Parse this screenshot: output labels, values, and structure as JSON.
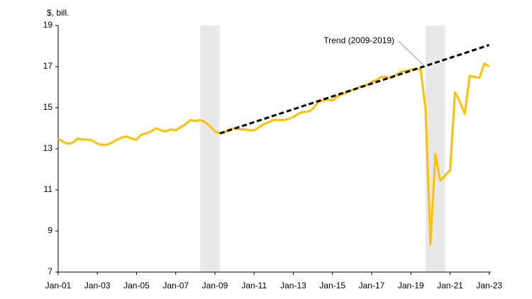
{
  "chart_data": {
    "type": "line",
    "y_label": "$, bill.",
    "annotation": "Trend (2009-2019)",
    "xlim": [
      "2001-01",
      "2023-02"
    ],
    "xticks": [
      {
        "value": "2001-01",
        "label": "Jan-01"
      },
      {
        "value": "2003-01",
        "label": "Jan-03"
      },
      {
        "value": "2005-01",
        "label": "Jan-05"
      },
      {
        "value": "2007-01",
        "label": "Jan-07"
      },
      {
        "value": "2009-01",
        "label": "Jan-09"
      },
      {
        "value": "2011-01",
        "label": "Jan-11"
      },
      {
        "value": "2013-01",
        "label": "Jan-13"
      },
      {
        "value": "2015-01",
        "label": "Jan-15"
      },
      {
        "value": "2017-01",
        "label": "Jan-17"
      },
      {
        "value": "2019-01",
        "label": "Jan-19"
      },
      {
        "value": "2021-01",
        "label": "Jan-21"
      },
      {
        "value": "2023-01",
        "label": "Jan-23"
      }
    ],
    "ylim": [
      7,
      19
    ],
    "yticks": [
      7,
      9,
      11,
      13,
      15,
      17,
      19
    ],
    "grid": false,
    "shaded_periods": [
      [
        "2008-04",
        "2009-04"
      ],
      [
        "2019-10",
        "2020-10"
      ]
    ],
    "shade_color": "#e8e8e8",
    "series": [
      {
        "color": "#ffc000",
        "dashed": false,
        "x": [
          "2001-01",
          "2001-04",
          "2001-07",
          "2001-10",
          "2002-01",
          "2002-04",
          "2002-07",
          "2002-10",
          "2003-01",
          "2003-04",
          "2003-07",
          "2003-10",
          "2004-01",
          "2004-04",
          "2004-07",
          "2004-10",
          "2005-01",
          "2005-04",
          "2005-07",
          "2005-10",
          "2006-01",
          "2006-04",
          "2006-07",
          "2006-10",
          "2007-01",
          "2007-04",
          "2007-07",
          "2007-10",
          "2008-01",
          "2008-04",
          "2008-07",
          "2008-10",
          "2009-01",
          "2009-04",
          "2009-07",
          "2009-10",
          "2010-01",
          "2010-04",
          "2010-07",
          "2010-10",
          "2011-01",
          "2011-04",
          "2011-07",
          "2011-10",
          "2012-01",
          "2012-04",
          "2012-07",
          "2012-10",
          "2013-01",
          "2013-04",
          "2013-07",
          "2013-10",
          "2014-01",
          "2014-04",
          "2014-07",
          "2014-10",
          "2015-01",
          "2015-04",
          "2015-07",
          "2015-10",
          "2016-01",
          "2016-04",
          "2016-07",
          "2016-10",
          "2017-01",
          "2017-04",
          "2017-07",
          "2017-10",
          "2018-01",
          "2018-04",
          "2018-07",
          "2018-10",
          "2019-01",
          "2019-04",
          "2019-07",
          "2019-10",
          "2020-01",
          "2020-04",
          "2020-07",
          "2020-10",
          "2021-01",
          "2021-04",
          "2021-07",
          "2021-10",
          "2022-01",
          "2022-04",
          "2022-07",
          "2022-10",
          "2023-01"
        ],
        "values": [
          13.5,
          13.35,
          13.25,
          13.3,
          13.5,
          13.45,
          13.45,
          13.4,
          13.25,
          13.2,
          13.2,
          13.3,
          13.45,
          13.55,
          13.6,
          13.5,
          13.45,
          13.7,
          13.75,
          13.85,
          14.0,
          13.9,
          13.85,
          13.95,
          13.9,
          14.05,
          14.2,
          14.4,
          14.35,
          14.4,
          14.3,
          14.1,
          13.85,
          13.75,
          13.8,
          13.95,
          14.0,
          13.95,
          13.95,
          13.9,
          13.9,
          14.05,
          14.2,
          14.3,
          14.4,
          14.4,
          14.4,
          14.45,
          14.55,
          14.7,
          14.8,
          14.8,
          14.95,
          15.25,
          15.35,
          15.4,
          15.35,
          15.55,
          15.65,
          15.75,
          15.85,
          15.95,
          16.05,
          16.1,
          16.25,
          16.35,
          16.5,
          16.5,
          16.45,
          16.6,
          16.75,
          16.8,
          16.85,
          16.9,
          16.85,
          14.9,
          8.35,
          12.75,
          11.45,
          11.7,
          11.95,
          15.75,
          15.3,
          14.7,
          16.55,
          16.5,
          16.45,
          17.15,
          17.0
        ]
      },
      {
        "name": "Trend (2009-2019)",
        "color": "#000000",
        "dashed": true,
        "x": [
          "2009-04",
          "2023-01"
        ],
        "values": [
          13.75,
          18.05
        ]
      }
    ]
  }
}
